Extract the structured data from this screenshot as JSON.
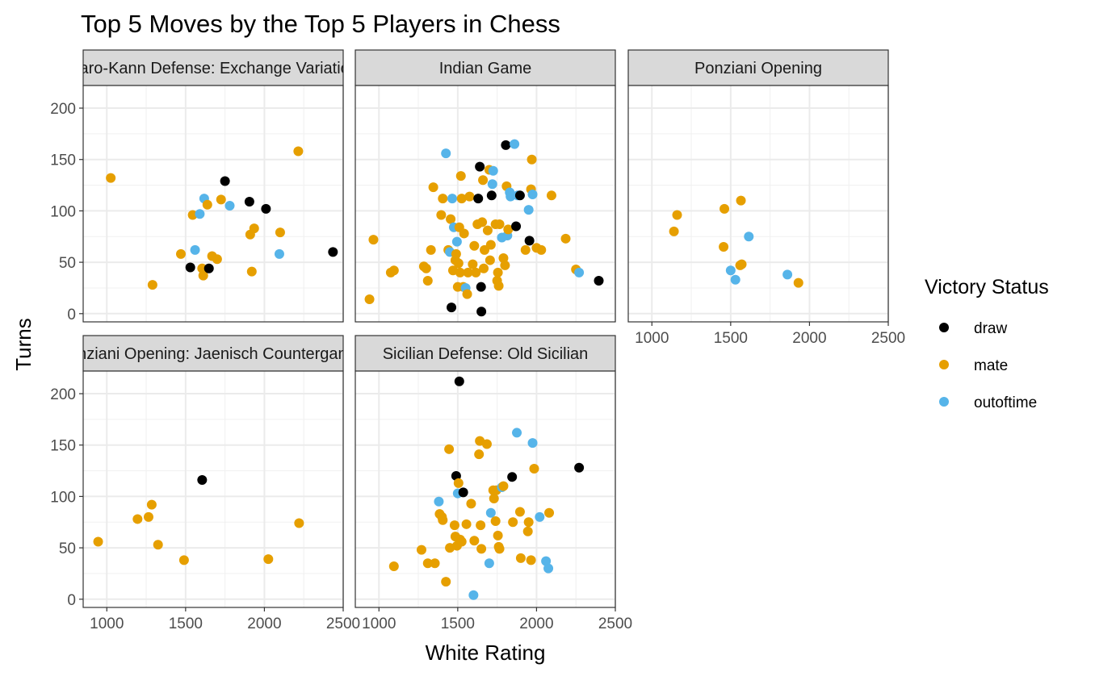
{
  "chart_data": {
    "type": "scatter",
    "title": "Top 5 Moves by the Top 5 Players in Chess",
    "xlabel": "White Rating",
    "ylabel": "Turns",
    "xlim": [
      850,
      2500
    ],
    "ylim": [
      -8,
      222
    ],
    "x_ticks": [
      "1000",
      "1500",
      "2000",
      "2500"
    ],
    "y_ticks": [
      "0",
      "50",
      "100",
      "150",
      "200"
    ],
    "grid": true,
    "legend": {
      "title": "Victory Status",
      "position": "right",
      "items": [
        {
          "name": "draw",
          "color": "#000000"
        },
        {
          "name": "mate",
          "color": "#E69F00"
        },
        {
          "name": "outoftime",
          "color": "#56B4E9"
        }
      ]
    },
    "panels": [
      {
        "label": "Caro-Kann Defense: Exchange Variation",
        "points": [
          {
            "x": 1025,
            "y": 132,
            "status": "mate"
          },
          {
            "x": 1290,
            "y": 28,
            "status": "mate"
          },
          {
            "x": 1470,
            "y": 58,
            "status": "mate"
          },
          {
            "x": 1530,
            "y": 45,
            "status": "draw"
          },
          {
            "x": 1545,
            "y": 96,
            "status": "mate"
          },
          {
            "x": 1560,
            "y": 62,
            "status": "outoftime"
          },
          {
            "x": 1590,
            "y": 97,
            "status": "outoftime"
          },
          {
            "x": 1605,
            "y": 44,
            "status": "mate"
          },
          {
            "x": 1612,
            "y": 37,
            "status": "mate"
          },
          {
            "x": 1618,
            "y": 112,
            "status": "outoftime"
          },
          {
            "x": 1638,
            "y": 106,
            "status": "mate"
          },
          {
            "x": 1648,
            "y": 44,
            "status": "draw"
          },
          {
            "x": 1668,
            "y": 56,
            "status": "mate"
          },
          {
            "x": 1700,
            "y": 53,
            "status": "mate"
          },
          {
            "x": 1725,
            "y": 111,
            "status": "mate"
          },
          {
            "x": 1750,
            "y": 129,
            "status": "draw"
          },
          {
            "x": 1780,
            "y": 105,
            "status": "outoftime"
          },
          {
            "x": 1905,
            "y": 109,
            "status": "draw"
          },
          {
            "x": 1910,
            "y": 77,
            "status": "mate"
          },
          {
            "x": 1920,
            "y": 41,
            "status": "mate"
          },
          {
            "x": 1935,
            "y": 83,
            "status": "mate"
          },
          {
            "x": 2010,
            "y": 102,
            "status": "draw"
          },
          {
            "x": 2095,
            "y": 58,
            "status": "outoftime"
          },
          {
            "x": 2100,
            "y": 79,
            "status": "mate"
          },
          {
            "x": 2215,
            "y": 158,
            "status": "mate"
          },
          {
            "x": 2435,
            "y": 60,
            "status": "draw"
          }
        ]
      },
      {
        "label": "Indian Game",
        "points": [
          {
            "x": 940,
            "y": 14,
            "status": "mate"
          },
          {
            "x": 965,
            "y": 72,
            "status": "mate"
          },
          {
            "x": 1075,
            "y": 40,
            "status": "mate"
          },
          {
            "x": 1095,
            "y": 42,
            "status": "mate"
          },
          {
            "x": 1285,
            "y": 46,
            "status": "mate"
          },
          {
            "x": 1300,
            "y": 44,
            "status": "mate"
          },
          {
            "x": 1310,
            "y": 32,
            "status": "mate"
          },
          {
            "x": 1330,
            "y": 62,
            "status": "mate"
          },
          {
            "x": 1345,
            "y": 123,
            "status": "mate"
          },
          {
            "x": 1395,
            "y": 96,
            "status": "mate"
          },
          {
            "x": 1405,
            "y": 112,
            "status": "mate"
          },
          {
            "x": 1425,
            "y": 156,
            "status": "outoftime"
          },
          {
            "x": 1440,
            "y": 62,
            "status": "mate"
          },
          {
            "x": 1450,
            "y": 60,
            "status": "outoftime"
          },
          {
            "x": 1455,
            "y": 92,
            "status": "mate"
          },
          {
            "x": 1460,
            "y": 6,
            "status": "draw"
          },
          {
            "x": 1465,
            "y": 112,
            "status": "outoftime"
          },
          {
            "x": 1470,
            "y": 42,
            "status": "mate"
          },
          {
            "x": 1475,
            "y": 84,
            "status": "outoftime"
          },
          {
            "x": 1485,
            "y": 52,
            "status": "mate"
          },
          {
            "x": 1490,
            "y": 58,
            "status": "mate"
          },
          {
            "x": 1495,
            "y": 70,
            "status": "outoftime"
          },
          {
            "x": 1500,
            "y": 26,
            "status": "mate"
          },
          {
            "x": 1505,
            "y": 49,
            "status": "mate"
          },
          {
            "x": 1510,
            "y": 84,
            "status": "mate"
          },
          {
            "x": 1515,
            "y": 40,
            "status": "mate"
          },
          {
            "x": 1520,
            "y": 134,
            "status": "mate"
          },
          {
            "x": 1525,
            "y": 112,
            "status": "mate"
          },
          {
            "x": 1535,
            "y": 26,
            "status": "mate"
          },
          {
            "x": 1540,
            "y": 78,
            "status": "mate"
          },
          {
            "x": 1550,
            "y": 25,
            "status": "outoftime"
          },
          {
            "x": 1560,
            "y": 19,
            "status": "mate"
          },
          {
            "x": 1565,
            "y": 40,
            "status": "mate"
          },
          {
            "x": 1575,
            "y": 114,
            "status": "mate"
          },
          {
            "x": 1595,
            "y": 48,
            "status": "mate"
          },
          {
            "x": 1605,
            "y": 66,
            "status": "mate"
          },
          {
            "x": 1615,
            "y": 40,
            "status": "mate"
          },
          {
            "x": 1625,
            "y": 87,
            "status": "mate"
          },
          {
            "x": 1630,
            "y": 112,
            "status": "draw"
          },
          {
            "x": 1640,
            "y": 143,
            "status": "draw"
          },
          {
            "x": 1648,
            "y": 26,
            "status": "draw"
          },
          {
            "x": 1650,
            "y": 2,
            "status": "draw"
          },
          {
            "x": 1655,
            "y": 89,
            "status": "mate"
          },
          {
            "x": 1660,
            "y": 130,
            "status": "mate"
          },
          {
            "x": 1665,
            "y": 44,
            "status": "mate"
          },
          {
            "x": 1670,
            "y": 62,
            "status": "mate"
          },
          {
            "x": 1690,
            "y": 81,
            "status": "mate"
          },
          {
            "x": 1700,
            "y": 140,
            "status": "mate"
          },
          {
            "x": 1705,
            "y": 52,
            "status": "mate"
          },
          {
            "x": 1710,
            "y": 67,
            "status": "mate"
          },
          {
            "x": 1715,
            "y": 115,
            "status": "draw"
          },
          {
            "x": 1720,
            "y": 126,
            "status": "outoftime"
          },
          {
            "x": 1725,
            "y": 139,
            "status": "outoftime"
          },
          {
            "x": 1740,
            "y": 87,
            "status": "mate"
          },
          {
            "x": 1750,
            "y": 32,
            "status": "mate"
          },
          {
            "x": 1755,
            "y": 40,
            "status": "mate"
          },
          {
            "x": 1760,
            "y": 27,
            "status": "mate"
          },
          {
            "x": 1765,
            "y": 87,
            "status": "mate"
          },
          {
            "x": 1780,
            "y": 74,
            "status": "outoftime"
          },
          {
            "x": 1790,
            "y": 54,
            "status": "mate"
          },
          {
            "x": 1800,
            "y": 47,
            "status": "mate"
          },
          {
            "x": 1805,
            "y": 164,
            "status": "draw"
          },
          {
            "x": 1810,
            "y": 124,
            "status": "mate"
          },
          {
            "x": 1815,
            "y": 76,
            "status": "outoftime"
          },
          {
            "x": 1820,
            "y": 82,
            "status": "mate"
          },
          {
            "x": 1830,
            "y": 118,
            "status": "outoftime"
          },
          {
            "x": 1835,
            "y": 114,
            "status": "outoftime"
          },
          {
            "x": 1860,
            "y": 165,
            "status": "outoftime"
          },
          {
            "x": 1870,
            "y": 85,
            "status": "draw"
          },
          {
            "x": 1880,
            "y": 115,
            "status": "outoftime"
          },
          {
            "x": 1895,
            "y": 115,
            "status": "draw"
          },
          {
            "x": 1930,
            "y": 62,
            "status": "mate"
          },
          {
            "x": 1950,
            "y": 101,
            "status": "outoftime"
          },
          {
            "x": 1955,
            "y": 71,
            "status": "draw"
          },
          {
            "x": 1965,
            "y": 121,
            "status": "mate"
          },
          {
            "x": 1970,
            "y": 150,
            "status": "mate"
          },
          {
            "x": 1975,
            "y": 116,
            "status": "outoftime"
          },
          {
            "x": 2000,
            "y": 64,
            "status": "mate"
          },
          {
            "x": 2030,
            "y": 62,
            "status": "mate"
          },
          {
            "x": 2095,
            "y": 115,
            "status": "mate"
          },
          {
            "x": 2185,
            "y": 73,
            "status": "mate"
          },
          {
            "x": 2250,
            "y": 43,
            "status": "mate"
          },
          {
            "x": 2270,
            "y": 40,
            "status": "outoftime"
          },
          {
            "x": 2395,
            "y": 32,
            "status": "draw"
          }
        ]
      },
      {
        "label": "Ponziani Opening",
        "points": [
          {
            "x": 1140,
            "y": 80,
            "status": "mate"
          },
          {
            "x": 1160,
            "y": 96,
            "status": "mate"
          },
          {
            "x": 1455,
            "y": 65,
            "status": "mate"
          },
          {
            "x": 1460,
            "y": 102,
            "status": "mate"
          },
          {
            "x": 1500,
            "y": 42,
            "status": "outoftime"
          },
          {
            "x": 1530,
            "y": 33,
            "status": "outoftime"
          },
          {
            "x": 1560,
            "y": 47,
            "status": "mate"
          },
          {
            "x": 1565,
            "y": 110,
            "status": "mate"
          },
          {
            "x": 1570,
            "y": 48,
            "status": "mate"
          },
          {
            "x": 1615,
            "y": 75,
            "status": "outoftime"
          },
          {
            "x": 1860,
            "y": 38,
            "status": "outoftime"
          },
          {
            "x": 1930,
            "y": 30,
            "status": "mate"
          }
        ]
      },
      {
        "label": "Ponziani Opening: Jaenisch Countergambit",
        "points": [
          {
            "x": 945,
            "y": 56,
            "status": "mate"
          },
          {
            "x": 1195,
            "y": 78,
            "status": "mate"
          },
          {
            "x": 1265,
            "y": 80,
            "status": "mate"
          },
          {
            "x": 1285,
            "y": 92,
            "status": "mate"
          },
          {
            "x": 1325,
            "y": 53,
            "status": "mate"
          },
          {
            "x": 1490,
            "y": 38,
            "status": "mate"
          },
          {
            "x": 1605,
            "y": 116,
            "status": "draw"
          },
          {
            "x": 2025,
            "y": 39,
            "status": "mate"
          },
          {
            "x": 2220,
            "y": 74,
            "status": "mate"
          }
        ]
      },
      {
        "label": "Sicilian Defense: Old Sicilian",
        "points": [
          {
            "x": 1095,
            "y": 32,
            "status": "mate"
          },
          {
            "x": 1270,
            "y": 48,
            "status": "mate"
          },
          {
            "x": 1310,
            "y": 35,
            "status": "mate"
          },
          {
            "x": 1355,
            "y": 35,
            "status": "mate"
          },
          {
            "x": 1380,
            "y": 95,
            "status": "outoftime"
          },
          {
            "x": 1385,
            "y": 83,
            "status": "mate"
          },
          {
            "x": 1400,
            "y": 80,
            "status": "mate"
          },
          {
            "x": 1405,
            "y": 77,
            "status": "mate"
          },
          {
            "x": 1425,
            "y": 17,
            "status": "mate"
          },
          {
            "x": 1445,
            "y": 146,
            "status": "mate"
          },
          {
            "x": 1450,
            "y": 50,
            "status": "mate"
          },
          {
            "x": 1480,
            "y": 72,
            "status": "mate"
          },
          {
            "x": 1485,
            "y": 61,
            "status": "mate"
          },
          {
            "x": 1490,
            "y": 120,
            "status": "draw"
          },
          {
            "x": 1495,
            "y": 52,
            "status": "mate"
          },
          {
            "x": 1500,
            "y": 103,
            "status": "outoftime"
          },
          {
            "x": 1505,
            "y": 113,
            "status": "mate"
          },
          {
            "x": 1510,
            "y": 212,
            "status": "draw"
          },
          {
            "x": 1515,
            "y": 58,
            "status": "mate"
          },
          {
            "x": 1525,
            "y": 56,
            "status": "mate"
          },
          {
            "x": 1535,
            "y": 104,
            "status": "draw"
          },
          {
            "x": 1555,
            "y": 73,
            "status": "mate"
          },
          {
            "x": 1585,
            "y": 93,
            "status": "mate"
          },
          {
            "x": 1600,
            "y": 4,
            "status": "outoftime"
          },
          {
            "x": 1605,
            "y": 57,
            "status": "mate"
          },
          {
            "x": 1635,
            "y": 141,
            "status": "mate"
          },
          {
            "x": 1640,
            "y": 154,
            "status": "mate"
          },
          {
            "x": 1645,
            "y": 72,
            "status": "mate"
          },
          {
            "x": 1650,
            "y": 49,
            "status": "mate"
          },
          {
            "x": 1685,
            "y": 151,
            "status": "mate"
          },
          {
            "x": 1700,
            "y": 35,
            "status": "outoftime"
          },
          {
            "x": 1710,
            "y": 84,
            "status": "outoftime"
          },
          {
            "x": 1725,
            "y": 106,
            "status": "mate"
          },
          {
            "x": 1730,
            "y": 98,
            "status": "mate"
          },
          {
            "x": 1740,
            "y": 76,
            "status": "mate"
          },
          {
            "x": 1745,
            "y": 106,
            "status": "mate"
          },
          {
            "x": 1755,
            "y": 62,
            "status": "mate"
          },
          {
            "x": 1760,
            "y": 51,
            "status": "mate"
          },
          {
            "x": 1765,
            "y": 49,
            "status": "mate"
          },
          {
            "x": 1780,
            "y": 109,
            "status": "outoftime"
          },
          {
            "x": 1790,
            "y": 110,
            "status": "mate"
          },
          {
            "x": 1845,
            "y": 119,
            "status": "draw"
          },
          {
            "x": 1850,
            "y": 75,
            "status": "mate"
          },
          {
            "x": 1875,
            "y": 162,
            "status": "outoftime"
          },
          {
            "x": 1895,
            "y": 85,
            "status": "mate"
          },
          {
            "x": 1900,
            "y": 40,
            "status": "mate"
          },
          {
            "x": 1945,
            "y": 66,
            "status": "mate"
          },
          {
            "x": 1950,
            "y": 75,
            "status": "mate"
          },
          {
            "x": 1965,
            "y": 38,
            "status": "mate"
          },
          {
            "x": 1975,
            "y": 152,
            "status": "outoftime"
          },
          {
            "x": 1985,
            "y": 127,
            "status": "mate"
          },
          {
            "x": 2020,
            "y": 80,
            "status": "outoftime"
          },
          {
            "x": 2060,
            "y": 37,
            "status": "outoftime"
          },
          {
            "x": 2075,
            "y": 30,
            "status": "outoftime"
          },
          {
            "x": 2080,
            "y": 84,
            "status": "mate"
          },
          {
            "x": 2270,
            "y": 128,
            "status": "draw"
          }
        ]
      }
    ]
  }
}
